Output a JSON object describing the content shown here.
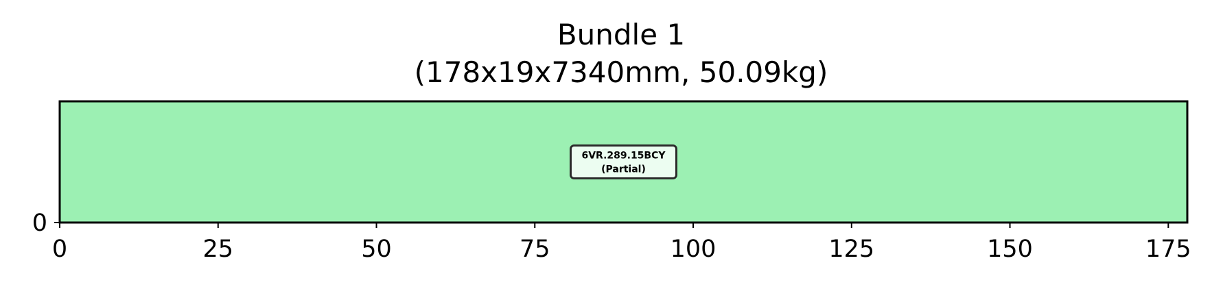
{
  "chart_data": {
    "type": "bar",
    "orientation": "horizontal-stacked",
    "title": "Bundle 1",
    "subtitle": "(178x19x7340mm, 50.09kg)",
    "xlabel": "",
    "ylabel": "",
    "xlim": [
      0,
      178
    ],
    "ylim": [
      0,
      19
    ],
    "x_ticks": [
      0,
      25,
      50,
      75,
      100,
      125,
      150,
      175
    ],
    "y_ticks": [
      0
    ],
    "grid": false,
    "segments": [
      {
        "x0": 0,
        "x1": 178,
        "y0": 0,
        "y1": 19,
        "color": "#9cf0b3",
        "label": "6VR.289.15BCY",
        "sublabel": "(Partial)"
      }
    ]
  }
}
